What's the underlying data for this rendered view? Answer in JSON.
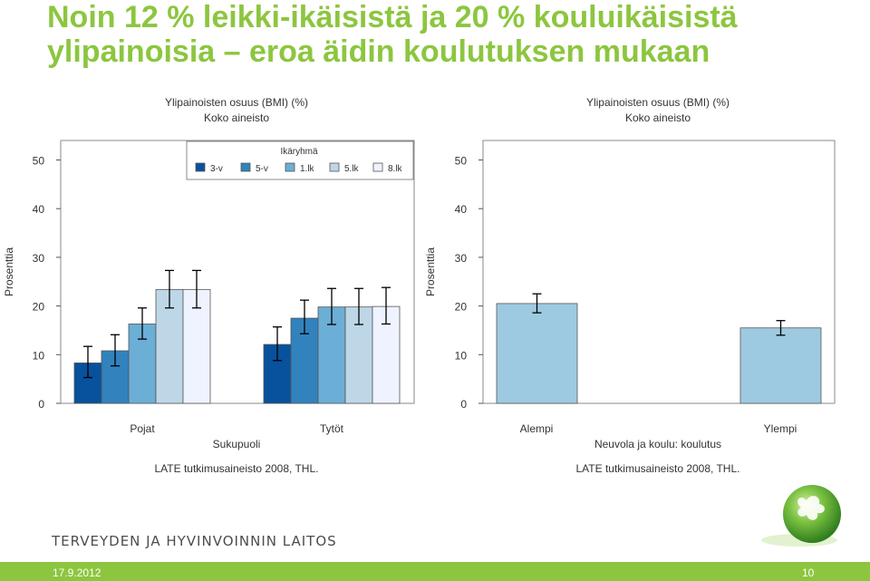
{
  "slide": {
    "title": "Noin 12 % leikki-ikäisistä ja 20 % kouluikäisistä ylipainoisia – eroa äidin koulutuksen mukaan",
    "organization": "TERVEYDEN JA HYVINVOINNIN LAITOS",
    "date": "17.9.2012",
    "page_number": "10",
    "accent_color": "#8cc63f",
    "logo_icon": "green-sphere-logo-icon"
  },
  "chart_data": [
    {
      "type": "bar",
      "title": "Ylipainoisten osuus (BMI) (%)",
      "subtitle": "Koko aineisto",
      "xlabel": "Sukupuoli",
      "ylabel": "Prosenttia",
      "ylim": [
        0,
        54
      ],
      "yticks": [
        0,
        10,
        20,
        30,
        40,
        50
      ],
      "categories": [
        "Pojat",
        "Tytöt"
      ],
      "legend_title": "Ikäryhmä",
      "legend_position": "top-right",
      "grid": false,
      "error_bars": true,
      "source": "LATE tutkimusaineisto 2008, THL.",
      "series": [
        {
          "name": "3-v",
          "color": "#08519c",
          "values": [
            8.3,
            12.1
          ],
          "lower": [
            5.3,
            8.8
          ],
          "upper": [
            11.7,
            15.7
          ]
        },
        {
          "name": "5-v",
          "color": "#3182bd",
          "values": [
            10.8,
            17.5
          ],
          "lower": [
            7.7,
            14.3
          ],
          "upper": [
            14.1,
            21.2
          ]
        },
        {
          "name": "1.lk",
          "color": "#6baed6",
          "values": [
            16.3,
            19.8
          ],
          "lower": [
            13.2,
            16.2
          ],
          "upper": [
            19.6,
            23.6
          ]
        },
        {
          "name": "5.lk",
          "color": "#bdd7e7",
          "values": [
            23.4,
            19.8
          ],
          "lower": [
            19.6,
            16.2
          ],
          "upper": [
            27.3,
            23.6
          ]
        },
        {
          "name": "8.lk",
          "color": "#eff3ff",
          "values": [
            23.4,
            19.9
          ],
          "lower": [
            19.6,
            16.3
          ],
          "upper": [
            27.3,
            23.8
          ]
        }
      ]
    },
    {
      "type": "bar",
      "title": "Ylipainoisten osuus (BMI) (%)",
      "subtitle": "Koko aineisto",
      "xlabel": "Neuvola ja koulu: koulutus",
      "ylabel": "Prosenttia",
      "ylim": [
        0,
        54
      ],
      "yticks": [
        0,
        10,
        20,
        30,
        40,
        50
      ],
      "categories": [
        "Alempi",
        "Ylempi"
      ],
      "grid": false,
      "error_bars": true,
      "source": "LATE tutkimusaineisto 2008, THL.",
      "series": [
        {
          "color": "#9ecae1",
          "values": [
            20.5,
            15.5
          ],
          "lower": [
            18.6,
            14.0
          ],
          "upper": [
            22.5,
            17.0
          ]
        }
      ]
    }
  ]
}
